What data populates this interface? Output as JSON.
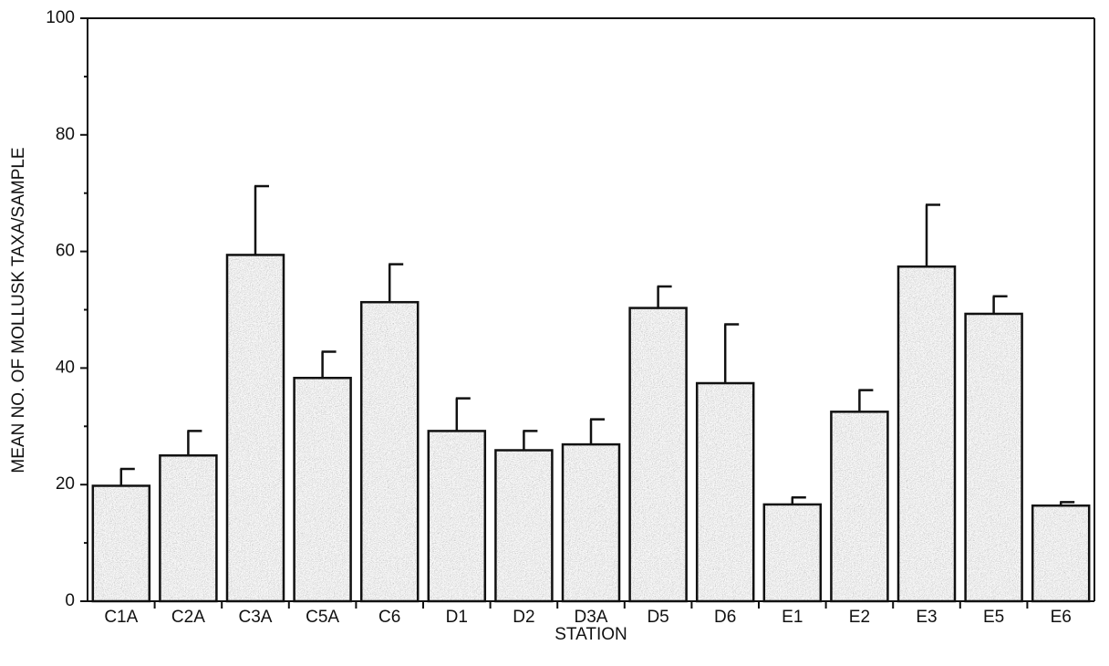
{
  "chart_data": {
    "type": "bar",
    "title": "",
    "xlabel": "STATION",
    "ylabel": "MEAN NO. OF MOLLUSK TAXA/SAMPLE",
    "ylim": [
      0,
      100
    ],
    "yticks": [
      0,
      20,
      40,
      60,
      80,
      100
    ],
    "grid": false,
    "categories": [
      "C1A",
      "C2A",
      "C3A",
      "C5A",
      "C6",
      "D1",
      "D2",
      "D3A",
      "D5",
      "D6",
      "E1",
      "E2",
      "E3",
      "E5",
      "E6"
    ],
    "values": [
      19.8,
      25.0,
      59.4,
      38.3,
      51.3,
      29.2,
      25.9,
      26.9,
      50.3,
      37.4,
      16.6,
      32.5,
      57.4,
      49.3,
      16.4
    ],
    "error_upper": [
      22.7,
      29.2,
      71.2,
      42.8,
      57.8,
      34.8,
      29.2,
      31.2,
      54.0,
      47.5,
      17.8,
      36.2,
      68.0,
      52.3,
      17.0
    ],
    "bar_fill": "#b3b3b3"
  }
}
